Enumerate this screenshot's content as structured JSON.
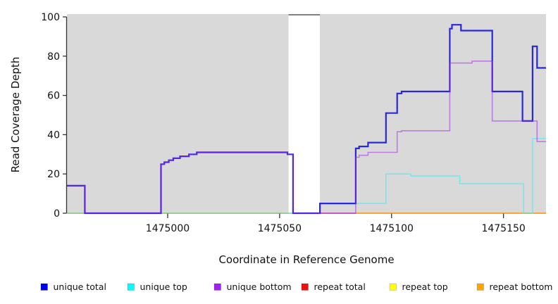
{
  "chart_data": {
    "type": "line",
    "subtype": "step",
    "title": "",
    "xlabel": "Coordinate in Reference Genome",
    "ylabel": "Read Coverage Depth",
    "xlim": [
      1474955,
      1475169
    ],
    "ylim": [
      0,
      100
    ],
    "x_ticks": [
      1475000,
      1475050,
      1475100,
      1475150
    ],
    "y_ticks": [
      0,
      20,
      40,
      60,
      80,
      100
    ],
    "grid": "off",
    "legend_position": "bottom",
    "panel_background": "#d9d9d9",
    "masked_region": {
      "x0": 1475054,
      "x1": 1475068,
      "color": "#ffffff",
      "top_border_color": "#808080"
    },
    "zero_line_segments": [
      {
        "x0": 1474955,
        "x1": 1475054,
        "color": "#8fce8f"
      },
      {
        "x0": 1475056,
        "x1": 1475084,
        "color": "#d060c8"
      },
      {
        "x0": 1475159,
        "x1": 1475163,
        "color": "#8fce8f"
      }
    ],
    "series": [
      {
        "name": "repeat total",
        "color": "#ee1111",
        "legend_color": "#ee1111",
        "width": 1.2,
        "opacity": 1,
        "steps": [
          [
            1474955,
            0
          ]
        ]
      },
      {
        "name": "repeat top",
        "color": "#ffff00",
        "legend_color": "#ffff00",
        "width": 1.2,
        "opacity": 1,
        "steps": [
          [
            1474955,
            0
          ]
        ]
      },
      {
        "name": "repeat bottom",
        "color": "#ff9a1e",
        "legend_color": "#ffa500",
        "width": 1.6,
        "opacity": 1,
        "steps": [
          [
            1474955,
            0
          ]
        ]
      },
      {
        "name": "unique top",
        "color": "#6fe9f0",
        "legend_color": "#00ffff",
        "width": 1.5,
        "opacity": 1,
        "steps": [
          [
            1474955,
            0
          ],
          [
            1475068,
            5
          ],
          [
            1475097.5,
            20
          ],
          [
            1475108.5,
            19
          ],
          [
            1475130.5,
            15
          ],
          [
            1475159,
            0
          ],
          [
            1475163,
            38
          ]
        ]
      },
      {
        "name": "unique total",
        "color": "#2727dd",
        "legend_color": "#0000ee",
        "width": 2.2,
        "opacity": 1,
        "steps": [
          [
            1474955,
            14
          ],
          [
            1474963,
            0
          ],
          [
            1474997,
            25
          ],
          [
            1474998.5,
            26
          ],
          [
            1475000.5,
            27
          ],
          [
            1475002.5,
            28
          ],
          [
            1475005.5,
            29
          ],
          [
            1475009.5,
            30
          ],
          [
            1475013,
            31
          ],
          [
            1475053.5,
            30
          ],
          [
            1475056,
            0
          ],
          [
            1475068,
            5
          ],
          [
            1475084,
            33
          ],
          [
            1475085.5,
            34
          ],
          [
            1475089.5,
            36
          ],
          [
            1475097.5,
            51
          ],
          [
            1475102.5,
            61
          ],
          [
            1475104.5,
            62
          ],
          [
            1475126,
            94
          ],
          [
            1475127,
            96
          ],
          [
            1475131,
            93
          ],
          [
            1475145,
            62
          ],
          [
            1475158.5,
            47
          ],
          [
            1475163,
            85
          ],
          [
            1475165,
            74
          ]
        ]
      },
      {
        "name": "unique bottom",
        "color": "#a020f0",
        "legend_color": "#a020f0",
        "width": 1.6,
        "opacity": 0.5,
        "steps": [
          [
            1474955,
            14
          ],
          [
            1474963,
            0
          ],
          [
            1474997,
            25
          ],
          [
            1474998.5,
            26
          ],
          [
            1475000.5,
            27
          ],
          [
            1475002.5,
            28
          ],
          [
            1475005.5,
            29
          ],
          [
            1475009.5,
            30
          ],
          [
            1475013,
            31
          ],
          [
            1475053.5,
            30
          ],
          [
            1475056,
            0
          ],
          [
            1475084,
            28.5
          ],
          [
            1475085.5,
            29.5
          ],
          [
            1475089.5,
            31
          ],
          [
            1475102.5,
            41.5
          ],
          [
            1475104.5,
            42
          ],
          [
            1475126,
            76.5
          ],
          [
            1475136,
            77.5
          ],
          [
            1475145,
            47
          ],
          [
            1475165,
            36.5
          ]
        ]
      }
    ],
    "legend": {
      "order": [
        "unique total",
        "unique top",
        "unique bottom",
        "repeat total",
        "repeat top",
        "repeat bottom"
      ]
    }
  }
}
